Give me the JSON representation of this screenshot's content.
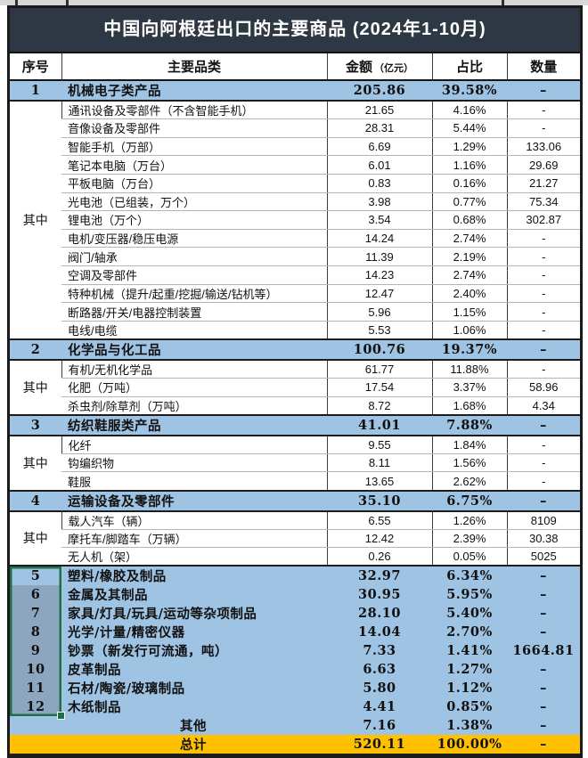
{
  "title": "中国向阿根廷出口的主要商品 (2024年1-10月)",
  "columns": {
    "seq": "序号",
    "category": "主要品类",
    "amount": "金额",
    "amount_unit": "（亿元）",
    "share": "占比",
    "quantity": "数量"
  },
  "colors": {
    "title_bar_bg": "#2E3845",
    "title_text": "#FFFFFF",
    "category_row_bg": "#9FC3E3",
    "selected_cell_bg": "#8CA6C0",
    "selection_border": "#1E7145",
    "total_row_bg": "#FFC000",
    "table_border": "#1A1A1A",
    "sub_row_divider": "#B5B5B5",
    "column_divider": "#3C3C3C",
    "top_strip_bg": "#D8D8D8"
  },
  "selection": {
    "column": "序号",
    "from_seq": "5",
    "to_seq": "12",
    "active_seq": "5"
  },
  "rows": [
    {
      "type": "main",
      "seq": "1",
      "category": "机械电子类产品",
      "amount": "205.86",
      "share": "39.58%",
      "quantity": "–"
    },
    {
      "type": "sub",
      "group_label": "其中",
      "group_size": 13,
      "category": "通讯设备及零部件（不含智能手机）",
      "amount": "21.65",
      "share": "4.16%",
      "quantity": "-"
    },
    {
      "type": "sub",
      "category": "音像设备及零部件",
      "amount": "28.31",
      "share": "5.44%",
      "quantity": "-"
    },
    {
      "type": "sub",
      "category": "智能手机（万部）",
      "amount": "6.69",
      "share": "1.29%",
      "quantity": "133.06"
    },
    {
      "type": "sub",
      "category": "笔记本电脑（万台）",
      "amount": "6.01",
      "share": "1.16%",
      "quantity": "29.69"
    },
    {
      "type": "sub",
      "category": "平板电脑（万台）",
      "amount": "0.83",
      "share": "0.16%",
      "quantity": "21.27"
    },
    {
      "type": "sub",
      "category": "光电池（已组装，万个）",
      "amount": "3.98",
      "share": "0.77%",
      "quantity": "75.34"
    },
    {
      "type": "sub",
      "category": "锂电池（万个）",
      "amount": "3.54",
      "share": "0.68%",
      "quantity": "302.87"
    },
    {
      "type": "sub",
      "category": "电机/变压器/稳压电源",
      "amount": "14.24",
      "share": "2.74%",
      "quantity": "-"
    },
    {
      "type": "sub",
      "category": "阀门/轴承",
      "amount": "11.39",
      "share": "2.19%",
      "quantity": "-"
    },
    {
      "type": "sub",
      "category": "空调及零部件",
      "amount": "14.23",
      "share": "2.74%",
      "quantity": "-"
    },
    {
      "type": "sub",
      "category": "特种机械（提升/起重/挖掘/输送/钻机等）",
      "amount": "12.47",
      "share": "2.40%",
      "quantity": "-"
    },
    {
      "type": "sub",
      "category": "断路器/开关/电器控制装置",
      "amount": "5.96",
      "share": "1.15%",
      "quantity": "-"
    },
    {
      "type": "sub",
      "category": "电线/电缆",
      "amount": "5.53",
      "share": "1.06%",
      "quantity": "-"
    },
    {
      "type": "main",
      "seq": "2",
      "category": "化学品与化工品",
      "amount": "100.76",
      "share": "19.37%",
      "quantity": "–"
    },
    {
      "type": "sub",
      "group_label": "其中",
      "group_size": 3,
      "category": "有机/无机化学品",
      "amount": "61.77",
      "share": "11.88%",
      "quantity": "-"
    },
    {
      "type": "sub",
      "category": "化肥（万吨）",
      "amount": "17.54",
      "share": "3.37%",
      "quantity": "58.96"
    },
    {
      "type": "sub",
      "category": "杀虫剂/除草剂（万吨）",
      "amount": "8.72",
      "share": "1.68%",
      "quantity": "4.34"
    },
    {
      "type": "main",
      "seq": "3",
      "category": "纺织鞋服类产品",
      "amount": "41.01",
      "share": "7.88%",
      "quantity": "–"
    },
    {
      "type": "sub",
      "group_label": "其中",
      "group_size": 3,
      "category": "化纤",
      "amount": "9.55",
      "share": "1.84%",
      "quantity": "-"
    },
    {
      "type": "sub",
      "category": "钩编织物",
      "amount": "8.11",
      "share": "1.56%",
      "quantity": "-"
    },
    {
      "type": "sub",
      "category": "鞋服",
      "amount": "13.65",
      "share": "2.62%",
      "quantity": "-"
    },
    {
      "type": "main",
      "seq": "4",
      "category": "运输设备及零部件",
      "amount": "35.10",
      "share": "6.75%",
      "quantity": "–"
    },
    {
      "type": "sub",
      "group_label": "其中",
      "group_size": 3,
      "category": "载人汽车（辆）",
      "amount": "6.55",
      "share": "1.26%",
      "quantity": "8109"
    },
    {
      "type": "sub",
      "category": "摩托车/脚踏车（万辆）",
      "amount": "12.42",
      "share": "2.39%",
      "quantity": "30.38"
    },
    {
      "type": "sub",
      "category": "无人机（架）",
      "amount": "0.26",
      "share": "0.05%",
      "quantity": "5025"
    },
    {
      "type": "main",
      "seq": "5",
      "selected": true,
      "category": "塑料/橡胶及制品",
      "amount": "32.97",
      "share": "6.34%",
      "quantity": "–"
    },
    {
      "type": "main",
      "seq": "6",
      "selected": true,
      "category": "金属及其制品",
      "amount": "30.95",
      "share": "5.95%",
      "quantity": "–"
    },
    {
      "type": "main",
      "seq": "7",
      "selected": true,
      "category": "家具/灯具/玩具/运动等杂项制品",
      "amount": "28.10",
      "share": "5.40%",
      "quantity": "–"
    },
    {
      "type": "main",
      "seq": "8",
      "selected": true,
      "category": "光学/计量/精密仪器",
      "amount": "14.04",
      "share": "2.70%",
      "quantity": "–"
    },
    {
      "type": "main",
      "seq": "9",
      "selected": true,
      "category": "钞票（新发行可流通，吨）",
      "amount": "7.33",
      "share": "1.41%",
      "quantity": "1664.81"
    },
    {
      "type": "main",
      "seq": "10",
      "selected": true,
      "category": "皮革制品",
      "amount": "6.63",
      "share": "1.27%",
      "quantity": "–"
    },
    {
      "type": "main",
      "seq": "11",
      "selected": true,
      "category": "石材/陶瓷/玻璃制品",
      "amount": "5.80",
      "share": "1.12%",
      "quantity": "–"
    },
    {
      "type": "main",
      "seq": "12",
      "selected": true,
      "category": "木纸制品",
      "amount": "4.41",
      "share": "0.85%",
      "quantity": "–"
    },
    {
      "type": "other",
      "seq": "",
      "category": "其他",
      "amount": "7.16",
      "share": "1.38%",
      "quantity": "–"
    },
    {
      "type": "total",
      "seq": "",
      "category": "总计",
      "amount": "520.11",
      "share": "100.00%",
      "quantity": "–"
    }
  ]
}
